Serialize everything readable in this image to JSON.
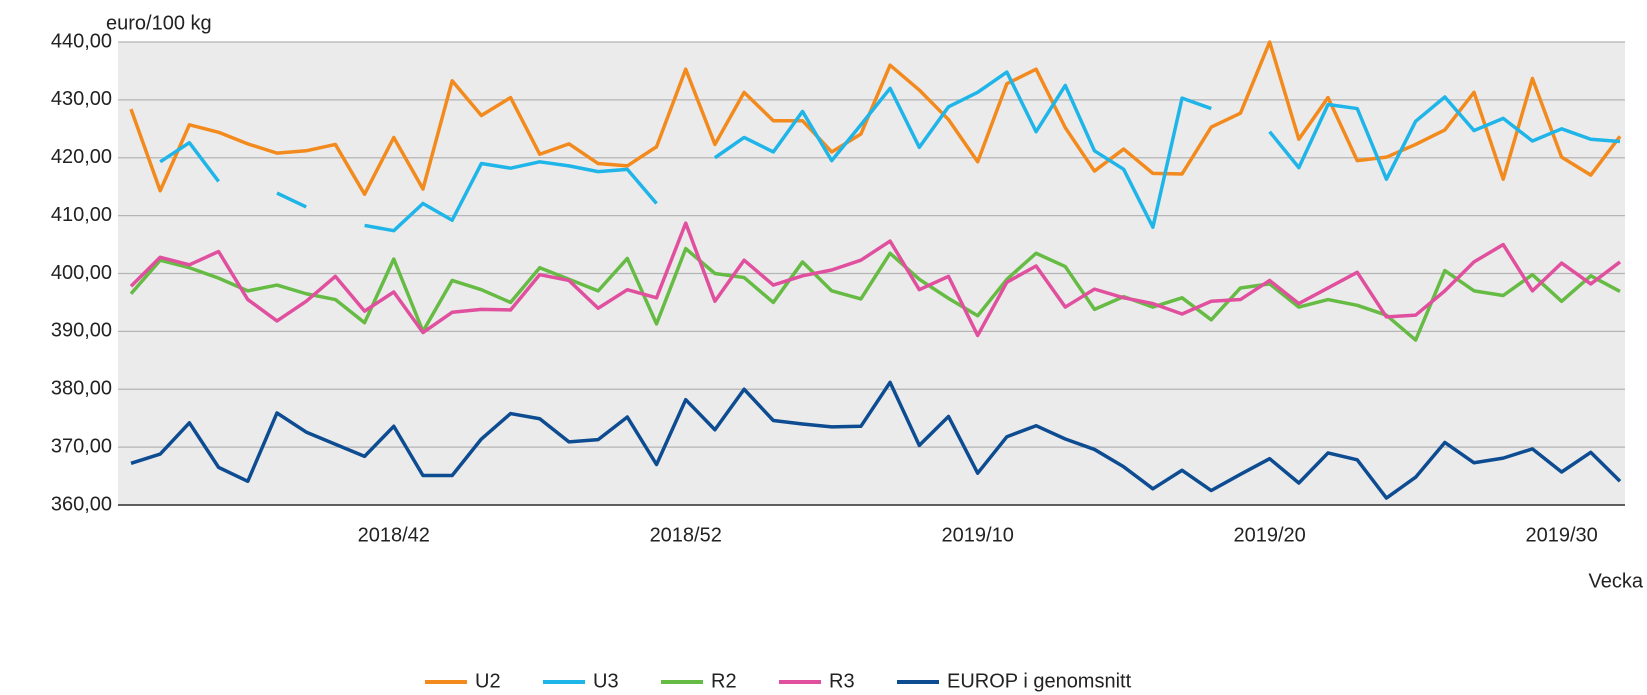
{
  "chart_data": {
    "type": "line",
    "y_label": "euro/100 kg",
    "x_label": "Vecka",
    "categories": [
      null,
      null,
      null,
      null,
      null,
      null,
      null,
      null,
      null,
      "2018/42",
      null,
      null,
      null,
      null,
      null,
      null,
      null,
      null,
      null,
      "2018/52",
      null,
      null,
      null,
      null,
      null,
      null,
      null,
      null,
      null,
      "2019/10",
      null,
      null,
      null,
      null,
      null,
      null,
      null,
      null,
      null,
      "2019/20",
      null,
      null,
      null,
      null,
      null,
      null,
      null,
      null,
      null,
      "2019/30",
      null,
      null
    ],
    "series": [
      {
        "name": "U2",
        "color": "#f28a1e",
        "values": [
          428.4,
          414.3,
          425.7,
          424.4,
          422.4,
          420.8,
          421.2,
          422.3,
          413.7,
          423.5,
          414.6,
          433.3,
          427.3,
          430.4,
          420.6,
          422.4,
          419,
          418.6,
          421.9,
          435.3,
          422.3,
          431.3,
          426.4,
          426.4,
          421,
          424.1,
          436,
          431.7,
          426.6,
          419.3,
          432.8,
          435.3,
          425.2,
          417.7,
          421.5,
          417.3,
          417.2,
          425.3,
          427.7,
          440,
          423.2,
          430.4,
          419.5,
          420.1,
          422.3,
          424.8,
          431.3,
          416.3,
          433.7,
          420.1,
          417,
          423.7
        ]
      },
      {
        "name": "U3",
        "color": "#1fb5e8",
        "values": [
          null,
          419.3,
          422.6,
          415.9,
          null,
          413.9,
          411.5,
          null,
          408.3,
          407.4,
          412.1,
          409.2,
          419,
          418.2,
          419.3,
          418.6,
          417.6,
          418,
          412.1,
          null,
          420,
          423.5,
          421,
          428,
          419.5,
          425.7,
          432,
          421.8,
          428.8,
          431.3,
          434.8,
          424.5,
          432.5,
          421.2,
          418,
          408,
          430.3,
          428.5,
          null,
          424.5,
          418.3,
          429.2,
          428.5,
          416.3,
          426.3,
          430.5,
          424.7,
          426.8,
          422.9,
          425,
          423.2,
          422.8
        ]
      },
      {
        "name": "R2",
        "color": "#66bb44",
        "values": [
          396.5,
          402.3,
          401,
          399.2,
          397,
          398,
          396.5,
          395.5,
          391.5,
          402.5,
          390,
          398.8,
          397.2,
          395,
          401,
          399,
          397,
          402.6,
          391.3,
          404.3,
          400,
          399.3,
          395,
          402,
          397,
          395.6,
          403.5,
          399,
          395.7,
          392.7,
          399,
          403.5,
          401.2,
          393.8,
          396,
          394.2,
          395.8,
          392,
          397.5,
          398.2,
          394.2,
          395.5,
          394.5,
          392.8,
          388.5,
          400.5,
          397,
          396.2,
          399.8,
          395.2,
          399.6,
          396.9
        ]
      },
      {
        "name": "R3",
        "color": "#e0509e",
        "values": [
          397.8,
          402.8,
          401.5,
          403.8,
          395.5,
          391.8,
          395.2,
          399.5,
          393.5,
          396.8,
          389.8,
          393.3,
          393.8,
          393.7,
          399.8,
          398.8,
          394,
          397.2,
          395.8,
          408.7,
          395.2,
          402.3,
          398,
          399.6,
          400.6,
          402.3,
          405.6,
          397.2,
          399.5,
          389.3,
          398.5,
          401.3,
          394.2,
          397.3,
          395.8,
          394.8,
          393,
          395.2,
          395.5,
          398.8,
          394.8,
          397.5,
          400.2,
          392.5,
          392.8,
          397,
          402,
          405,
          397,
          401.8,
          398.2,
          402
        ]
      },
      {
        "name": "EUROP i genomsnitt",
        "color": "#0e4c92",
        "values": [
          367.2,
          368.8,
          374.2,
          366.5,
          364.1,
          375.9,
          372.6,
          370.5,
          368.4,
          373.6,
          365.1,
          365.1,
          371.4,
          375.8,
          374.9,
          370.9,
          371.3,
          375.2,
          367,
          378.2,
          373,
          380,
          374.6,
          374,
          373.5,
          373.6,
          381.2,
          370.3,
          375.3,
          365.5,
          371.8,
          373.7,
          371.4,
          369.6,
          366.6,
          362.8,
          366,
          362.5,
          365.3,
          368,
          363.8,
          369,
          367.8,
          361.2,
          364.8,
          370.8,
          367.3,
          368.1,
          369.7,
          365.7,
          369.1,
          364.1
        ]
      }
    ],
    "ylim": [
      360,
      440
    ],
    "yticks": [
      {
        "value": 360,
        "label": "360,00"
      },
      {
        "value": 370,
        "label": "370,00"
      },
      {
        "value": 380,
        "label": "380,00"
      },
      {
        "value": 390,
        "label": "390,00"
      },
      {
        "value": 400,
        "label": "400,00"
      },
      {
        "value": 410,
        "label": "410,00"
      },
      {
        "value": 420,
        "label": "420,00"
      },
      {
        "value": 430,
        "label": "430,00"
      },
      {
        "value": 440,
        "label": "440,00"
      }
    ],
    "grid": true,
    "legend": "bottom"
  }
}
